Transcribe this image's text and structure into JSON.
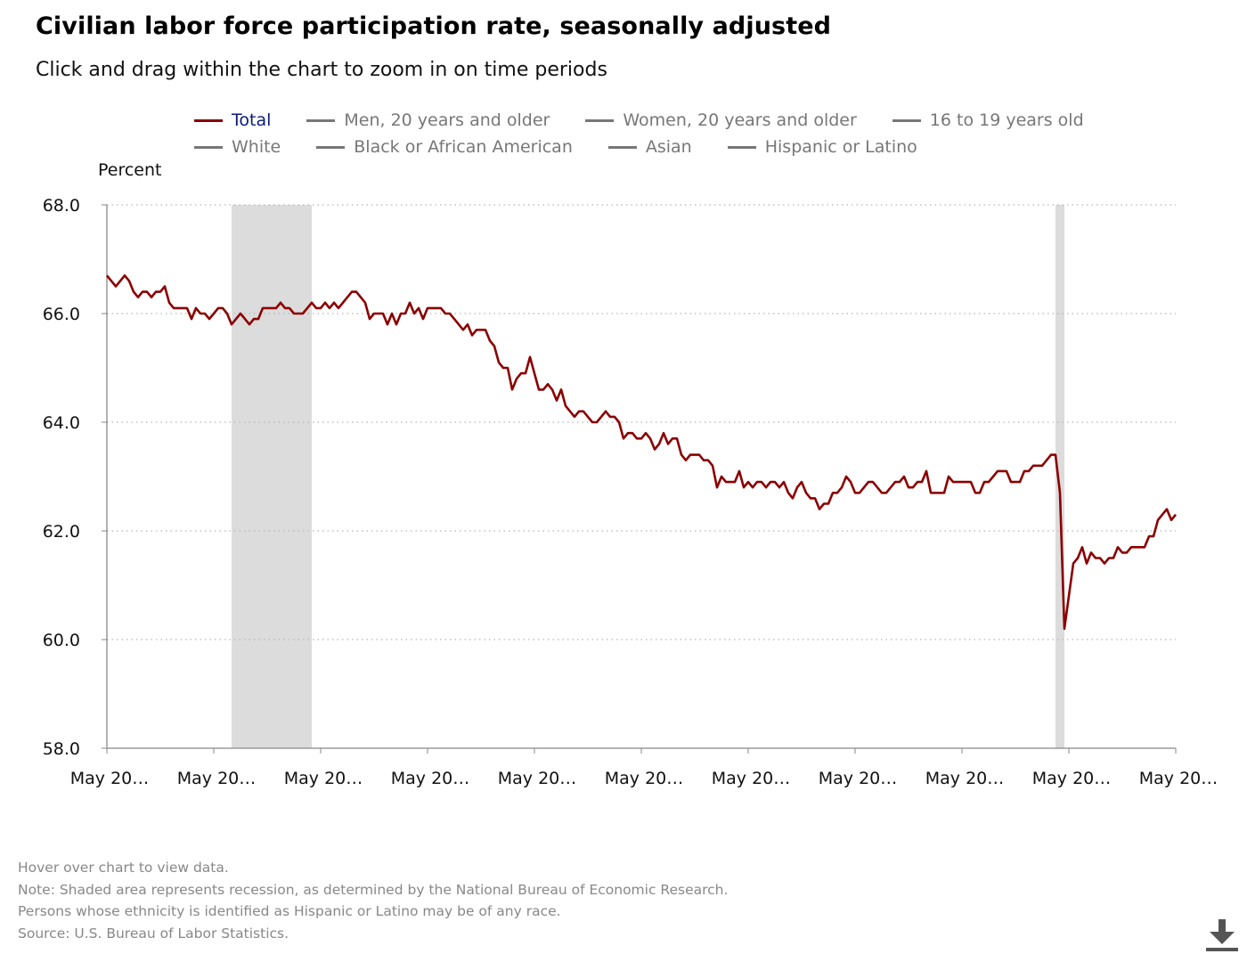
{
  "title": "Civilian labor force participation rate, seasonally adjusted",
  "subtitle": "Click and drag within the chart to zoom in on time periods",
  "legend": {
    "row1": [
      "Total",
      "Men, 20 years and older",
      "Women, 20 years and older",
      "16 to 19 years old"
    ],
    "row2": [
      "White",
      "Black or African American",
      "Asian",
      "Hispanic or Latino"
    ]
  },
  "notes": [
    "Hover over chart to view data.",
    "Note: Shaded area represents recession, as determined by the National Bureau of Economic Research.",
    "Persons whose ethnicity is identified as Hispanic or Latino may be of any race.",
    "Source: U.S. Bureau of Labor Statistics."
  ],
  "colors": {
    "series": "#8b0000",
    "recession": "#dcdcdc",
    "grid": "#b5b5b5",
    "axis": "#888888"
  },
  "icons": {
    "download": "download-icon"
  },
  "chart_data": {
    "type": "line",
    "ylabel": "Percent",
    "ylim": [
      58.0,
      68.0
    ],
    "yticks": [
      "58.0",
      "60.0",
      "62.0",
      "64.0",
      "66.0",
      "68.0"
    ],
    "xtick_labels": [
      "May 20…",
      "May 20…",
      "May 20…",
      "May 20…",
      "May 20…",
      "May 20…",
      "May 20…",
      "May 20…",
      "May 20…",
      "May 20…",
      "May 20…"
    ],
    "x_range_months": [
      0,
      240
    ],
    "grid": "horizontal dotted",
    "recessions": [
      [
        28,
        46
      ],
      [
        213,
        215
      ]
    ],
    "series": [
      {
        "name": "Total",
        "values": [
          66.7,
          66.6,
          66.5,
          66.6,
          66.7,
          66.6,
          66.4,
          66.3,
          66.4,
          66.4,
          66.3,
          66.4,
          66.4,
          66.5,
          66.2,
          66.1,
          66.1,
          66.1,
          66.1,
          65.9,
          66.1,
          66.0,
          66.0,
          65.9,
          66.0,
          66.1,
          66.1,
          66.0,
          65.8,
          65.9,
          66.0,
          65.9,
          65.8,
          65.9,
          65.9,
          66.1,
          66.1,
          66.1,
          66.1,
          66.2,
          66.1,
          66.1,
          66.0,
          66.0,
          66.0,
          66.1,
          66.2,
          66.1,
          66.1,
          66.2,
          66.1,
          66.2,
          66.1,
          66.2,
          66.3,
          66.4,
          66.4,
          66.3,
          66.2,
          65.9,
          66.0,
          66.0,
          66.0,
          65.8,
          66.0,
          65.8,
          66.0,
          66.0,
          66.2,
          66.0,
          66.1,
          65.9,
          66.1,
          66.1,
          66.1,
          66.1,
          66.0,
          66.0,
          65.9,
          65.8,
          65.7,
          65.8,
          65.6,
          65.7,
          65.7,
          65.7,
          65.5,
          65.4,
          65.1,
          65.0,
          65.0,
          64.6,
          64.8,
          64.9,
          64.9,
          65.2,
          64.9,
          64.6,
          64.6,
          64.7,
          64.6,
          64.4,
          64.6,
          64.3,
          64.2,
          64.1,
          64.2,
          64.2,
          64.1,
          64.0,
          64.0,
          64.1,
          64.2,
          64.1,
          64.1,
          64.0,
          63.7,
          63.8,
          63.8,
          63.7,
          63.7,
          63.8,
          63.7,
          63.5,
          63.6,
          63.8,
          63.6,
          63.7,
          63.7,
          63.4,
          63.3,
          63.4,
          63.4,
          63.4,
          63.3,
          63.3,
          63.2,
          62.8,
          63.0,
          62.9,
          62.9,
          62.9,
          63.1,
          62.8,
          62.9,
          62.8,
          62.9,
          62.9,
          62.8,
          62.9,
          62.9,
          62.8,
          62.9,
          62.7,
          62.6,
          62.8,
          62.9,
          62.7,
          62.6,
          62.6,
          62.4,
          62.5,
          62.5,
          62.7,
          62.7,
          62.8,
          63.0,
          62.9,
          62.7,
          62.7,
          62.8,
          62.9,
          62.9,
          62.8,
          62.7,
          62.7,
          62.8,
          62.9,
          62.9,
          63.0,
          62.8,
          62.8,
          62.9,
          62.9,
          63.1,
          62.7,
          62.7,
          62.7,
          62.7,
          63.0,
          62.9,
          62.9,
          62.9,
          62.9,
          62.9,
          62.7,
          62.7,
          62.9,
          62.9,
          63.0,
          63.1,
          63.1,
          63.1,
          62.9,
          62.9,
          62.9,
          63.1,
          63.1,
          63.2,
          63.2,
          63.2,
          63.3,
          63.4,
          63.4,
          62.7,
          60.2,
          60.8,
          61.4,
          61.5,
          61.7,
          61.4,
          61.6,
          61.5,
          61.5,
          61.4,
          61.5,
          61.5,
          61.7,
          61.6,
          61.6,
          61.7,
          61.7,
          61.7,
          61.7,
          61.9,
          61.9,
          62.2,
          62.3,
          62.4,
          62.2,
          62.3
        ]
      }
    ]
  }
}
